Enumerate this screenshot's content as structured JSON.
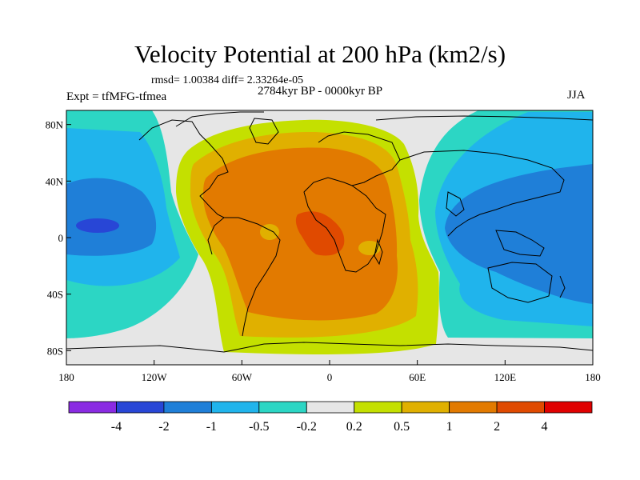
{
  "chart_data": {
    "type": "contour-map",
    "title": "Velocity Potential at 200 hPa (km2/s)",
    "stats_line": "rmsd= 1.00384 diff= 2.33264e-05",
    "period": "2784kyr BP - 0000kyr BP",
    "experiment": "Expt = tfMFG-tfmea",
    "season": "JJA",
    "x_range": [
      -180,
      180
    ],
    "y_range": [
      -90,
      90
    ],
    "x_ticks": [
      {
        "value": -180,
        "label": "180"
      },
      {
        "value": -120,
        "label": "120W"
      },
      {
        "value": -60,
        "label": "60W"
      },
      {
        "value": 0,
        "label": "0"
      },
      {
        "value": 60,
        "label": "60E"
      },
      {
        "value": 120,
        "label": "120E"
      },
      {
        "value": 180,
        "label": "180"
      }
    ],
    "y_ticks": [
      {
        "value": 80,
        "label": "80N"
      },
      {
        "value": 40,
        "label": "40N"
      },
      {
        "value": 0,
        "label": "0"
      },
      {
        "value": -40,
        "label": "40S"
      },
      {
        "value": -80,
        "label": "80S"
      }
    ],
    "levels": [
      -4,
      -2,
      -1,
      -0.5,
      -0.2,
      0.2,
      0.5,
      1,
      2,
      4
    ],
    "colorbar_labels": [
      "-4",
      "-2",
      "-1",
      "-0.5",
      "-0.2",
      "0.2",
      "0.5",
      "1",
      "2",
      "4"
    ],
    "colorbar_colors": [
      "#8a2be2",
      "#2846d6",
      "#1f7fd8",
      "#20b4ec",
      "#2cd6c4",
      "#e6e6e6",
      "#c4e000",
      "#e0b000",
      "#e27a00",
      "#e04a00",
      "#e00000"
    ],
    "positive_center": {
      "lon": -15,
      "lat": 5,
      "value_band": "2 to 4"
    },
    "negative_center": {
      "lon": 140,
      "lat": 10,
      "value_band": "-2 to -1"
    }
  }
}
